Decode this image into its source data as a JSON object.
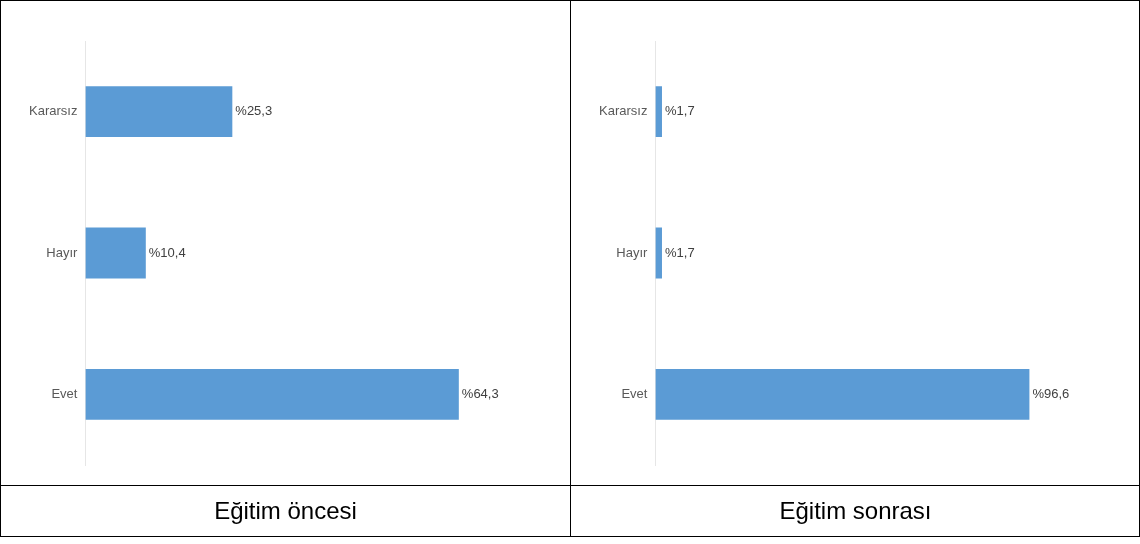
{
  "chart_data": [
    {
      "type": "bar",
      "orientation": "horizontal",
      "title": "Eğitim öncesi",
      "categories": [
        "Kararsız",
        "Hayır",
        "Evet"
      ],
      "values": [
        25.3,
        10.4,
        64.3
      ],
      "color": "#5b9bd5",
      "value_labels": [
        "%25,3",
        "%10,4",
        "%64,3"
      ],
      "tick_labels": "y",
      "grid": false,
      "legend": false
    },
    {
      "type": "bar",
      "orientation": "horizontal",
      "title": "Eğitim sonrası",
      "categories": [
        "Kararsız",
        "Hayır",
        "Evet"
      ],
      "values": [
        1.7,
        1.7,
        96.6
      ],
      "color": "#5b9bd5",
      "value_labels": [
        "%1,7",
        "%1,7",
        "%96,6"
      ],
      "tick_labels": "y",
      "grid": false,
      "legend": false
    }
  ]
}
